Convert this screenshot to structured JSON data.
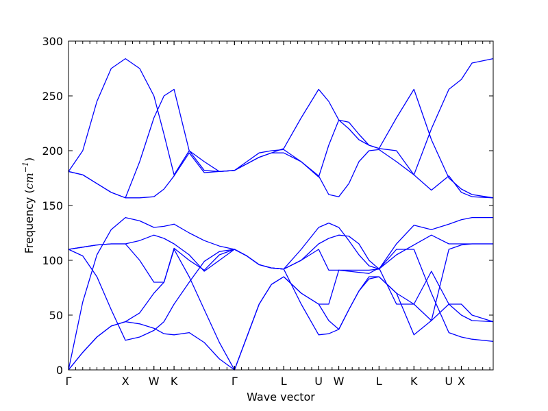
{
  "chart_data": {
    "type": "line",
    "title": "",
    "xlabel": "Wave vector",
    "ylabel": {
      "prefix": "Frequency (",
      "math_base": "cm",
      "math_sup": "−1",
      "suffix": ")"
    },
    "ylim": [
      0,
      300
    ],
    "yticks": [
      0,
      50,
      100,
      150,
      200,
      250,
      300
    ],
    "xlim": [
      0,
      1.6838
    ],
    "high_symmetry_points": [
      {
        "label": "Γ",
        "x": 0
      },
      {
        "label": "X",
        "x": 0.2257
      },
      {
        "label": "W",
        "x": 0.3387
      },
      {
        "label": "K",
        "x": 0.4185
      },
      {
        "label": "Γ",
        "x": 0.6581
      },
      {
        "label": "L",
        "x": 0.8534
      },
      {
        "label": "U",
        "x": 0.9917
      },
      {
        "label": "W",
        "x": 1.0716
      },
      {
        "label": "L",
        "x": 1.2312
      },
      {
        "label": "K",
        "x": 1.3696
      },
      {
        "label": "U",
        "x": 1.508
      },
      {
        "label": "X",
        "x": 1.5576
      }
    ],
    "grid": false,
    "line_color": "#0000ff",
    "series": [
      {
        "x": [
          0,
          0.0564,
          0.1128,
          0.1693,
          0.2257,
          0.2822,
          0.3387,
          0.3787,
          0.4185,
          0.4784,
          0.5383,
          0.5982,
          0.6581,
          0.7069,
          0.7558,
          0.8046,
          0.8534,
          0.9225,
          0.9917,
          1.0317,
          1.0716,
          1.1115,
          1.1514,
          1.1913,
          1.2312,
          1.3004,
          1.3696,
          1.4388,
          1.508,
          1.5576,
          1.6,
          1.6838
        ],
        "values": [
          0,
          16,
          30,
          40,
          44,
          42,
          38,
          33,
          32,
          34,
          25,
          10,
          0,
          30,
          60,
          78,
          85,
          70,
          60,
          45,
          37,
          55,
          72,
          85,
          85,
          70,
          60,
          45,
          60,
          50,
          45,
          44
        ]
      },
      {
        "x": [
          0,
          0.0564,
          0.1128,
          0.1693,
          0.2257,
          0.2822,
          0.3387,
          0.3787,
          0.4185,
          0.4784,
          0.5383,
          0.5982,
          0.6581,
          0.7069,
          0.7558,
          0.8046,
          0.8534,
          0.9225,
          0.9917,
          1.0317,
          1.0716,
          1.1115,
          1.1514,
          1.1913,
          1.2312,
          1.3004,
          1.3696,
          1.4388,
          1.508,
          1.5576,
          1.6,
          1.6838
        ],
        "values": [
          0,
          16,
          30,
          40,
          44,
          52,
          70,
          80,
          110,
          85,
          55,
          25,
          0,
          30,
          60,
          78,
          85,
          70,
          60,
          60,
          91,
          91,
          91,
          91,
          92,
          110,
          110,
          70,
          34,
          30,
          28,
          26
        ]
      },
      {
        "x": [
          0,
          0.0564,
          0.1128,
          0.1693,
          0.2257,
          0.2822,
          0.3387,
          0.3787,
          0.4185,
          0.4784,
          0.5383,
          0.5982,
          0.6581,
          0.7069,
          0.7558,
          0.8046,
          0.8534,
          0.9225,
          0.9917,
          1.0317,
          1.0716,
          1.1115,
          1.1514,
          1.1913,
          1.2312,
          1.3004,
          1.3696,
          1.4388,
          1.508,
          1.5576,
          1.6,
          1.6838
        ],
        "values": [
          0,
          62,
          105,
          128,
          139,
          136,
          130,
          131,
          133,
          125,
          118,
          113,
          110,
          104,
          96,
          93,
          92,
          110,
          130,
          134,
          130,
          118,
          105,
          95,
          92,
          115,
          132,
          128,
          133,
          137,
          139,
          139
        ]
      },
      {
        "x": [
          0,
          0.0564,
          0.1128,
          0.1693,
          0.2257,
          0.2822,
          0.3387,
          0.3787,
          0.4185,
          0.4784,
          0.5383,
          0.5982,
          0.6581,
          0.7069,
          0.7558,
          0.8046,
          0.8534,
          0.9225,
          0.9917,
          1.0317,
          1.0716,
          1.1115,
          1.1514,
          1.1913,
          1.2312,
          1.3004,
          1.3696,
          1.4388,
          1.508,
          1.5576,
          1.6,
          1.6838
        ],
        "values": [
          110,
          112,
          114,
          115,
          115,
          118,
          123,
          120,
          115,
          105,
          90,
          100,
          110,
          104,
          96,
          93,
          92,
          100,
          115,
          120,
          123,
          122,
          115,
          100,
          92,
          105,
          114,
          123,
          115,
          115,
          115,
          115
        ]
      },
      {
        "x": [
          0,
          0.0564,
          0.1128,
          0.1693,
          0.2257,
          0.2822,
          0.3387,
          0.3787,
          0.4185,
          0.4784,
          0.5383,
          0.5982,
          0.6581,
          0.7069,
          0.7558,
          0.8046,
          0.8534,
          0.9225,
          0.9917,
          1.0317,
          1.0716,
          1.1115,
          1.1514,
          1.1913,
          1.2312,
          1.3004,
          1.3696,
          1.4388,
          1.508,
          1.5576,
          1.6,
          1.6838
        ],
        "values": [
          110,
          104,
          85,
          55,
          27,
          30,
          36,
          44,
          60,
          80,
          99,
          108,
          110,
          104,
          96,
          93,
          92,
          60,
          32,
          33,
          37,
          55,
          72,
          83,
          85,
          70,
          32,
          45,
          110,
          114,
          115,
          115
        ]
      },
      {
        "x": [
          0,
          0.0564,
          0.1128,
          0.1693,
          0.2257,
          0.2822,
          0.3387,
          0.3787,
          0.4185,
          0.4784,
          0.5383,
          0.5982,
          0.6581,
          0.7069,
          0.7558,
          0.8046,
          0.8534,
          0.9225,
          0.9917,
          1.0317,
          1.0716,
          1.1115,
          1.1514,
          1.1913,
          1.2312,
          1.3004,
          1.3696,
          1.4388,
          1.508,
          1.5576,
          1.6,
          1.6838
        ],
        "values": [
          110,
          112,
          114,
          115,
          115,
          100,
          80,
          80,
          111,
          100,
          91,
          105,
          110,
          104,
          96,
          93,
          92,
          100,
          110,
          91,
          91,
          90,
          89,
          88,
          93,
          60,
          60,
          90,
          60,
          60,
          50,
          44
        ]
      },
      {
        "x": [
          0,
          0.0564,
          0.1128,
          0.1693,
          0.2257,
          0.2822,
          0.3387,
          0.3787,
          0.4185,
          0.4784,
          0.5383,
          0.5982,
          0.6581,
          0.7069,
          0.7558,
          0.8046,
          0.8534,
          0.9225,
          0.9917,
          1.0317,
          1.0716,
          1.1115,
          1.1514,
          1.1913,
          1.2312,
          1.3004,
          1.3696,
          1.4388,
          1.508,
          1.5576,
          1.6,
          1.6838
        ],
        "values": [
          181,
          178,
          170,
          162,
          157,
          157,
          158,
          165,
          177,
          198,
          180,
          181,
          182,
          190,
          198,
          200,
          201,
          190,
          177,
          160,
          158,
          170,
          190,
          200,
          201,
          190,
          178,
          164,
          177,
          162,
          158,
          157
        ]
      },
      {
        "x": [
          0,
          0.0564,
          0.1128,
          0.1693,
          0.2257,
          0.2822,
          0.3387,
          0.3787,
          0.4185,
          0.4784,
          0.5383,
          0.5982,
          0.6581,
          0.7069,
          0.7558,
          0.8046,
          0.8534,
          0.9225,
          0.9917,
          1.0317,
          1.0716,
          1.1115,
          1.1514,
          1.1913,
          1.2312,
          1.3004,
          1.3696,
          1.4388,
          1.508,
          1.5576,
          1.6,
          1.6838
        ],
        "values": [
          181,
          178,
          170,
          162,
          157,
          190,
          230,
          250,
          256,
          200,
          182,
          181,
          182,
          188,
          194,
          198,
          198,
          190,
          176,
          205,
          228,
          220,
          210,
          205,
          202,
          230,
          256,
          210,
          175,
          165,
          160,
          157
        ]
      },
      {
        "x": [
          0,
          0.0564,
          0.1128,
          0.1693,
          0.2257,
          0.2822,
          0.3387,
          0.3787,
          0.4185,
          0.4784,
          0.5383,
          0.5982,
          0.6581,
          0.7069,
          0.7558,
          0.8046,
          0.8534,
          0.9225,
          0.9917,
          1.0317,
          1.0716,
          1.1115,
          1.1514,
          1.1913,
          1.2312,
          1.3004,
          1.3696,
          1.4388,
          1.508,
          1.5576,
          1.6,
          1.6838
        ],
        "values": [
          181,
          200,
          245,
          275,
          284,
          275,
          250,
          215,
          178,
          200,
          190,
          181,
          182,
          188,
          194,
          198,
          202,
          230,
          256,
          245,
          228,
          226,
          215,
          205,
          202,
          200,
          178,
          220,
          256,
          265,
          280,
          284
        ]
      }
    ]
  }
}
